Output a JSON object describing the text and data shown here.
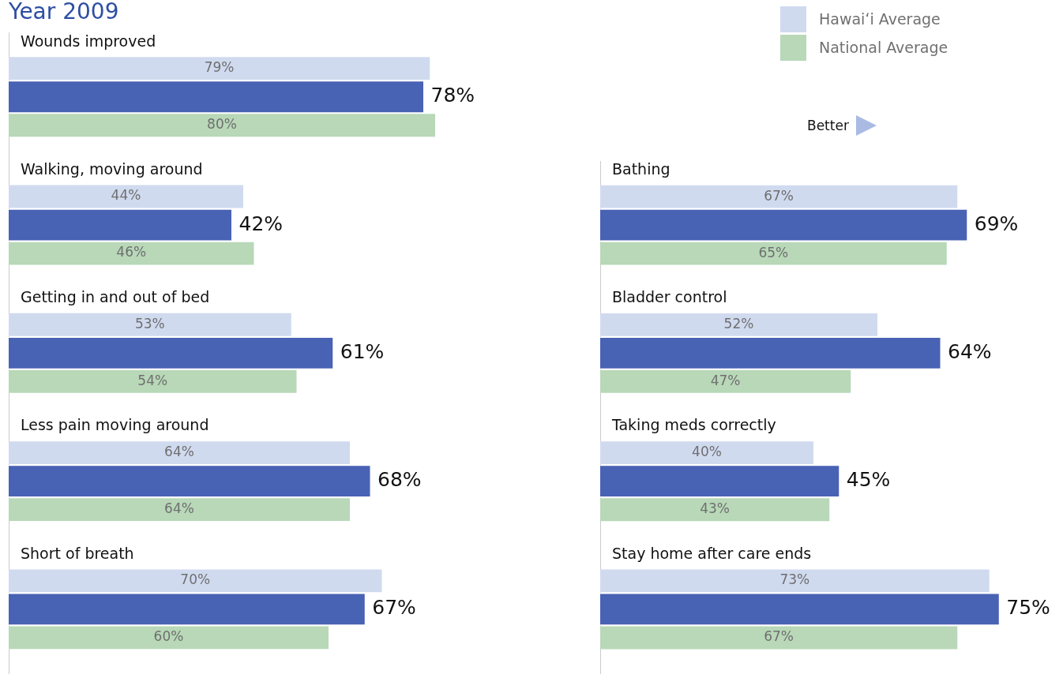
{
  "chart_data": [
    {
      "type": "bar",
      "orientation": "horizontal",
      "title": "Year 2009",
      "categories": [
        "Wounds improved",
        "Walking, moving around",
        "Getting in and out of bed",
        "Less pain moving around",
        "Short of breath"
      ],
      "tick_labels": "y",
      "legend": "top right",
      "series": [
        {
          "name": "Hawaiʻi Average",
          "color": "#d0daef",
          "values": [
            79,
            44,
            53,
            64,
            70
          ],
          "value_labels": [
            "79%",
            "44%",
            "53%",
            "64%",
            "70%"
          ]
        },
        {
          "color": "#4862b4",
          "values": [
            78,
            42,
            61,
            68,
            67
          ],
          "value_labels": [
            "78%",
            "42%",
            "61%",
            "68%",
            "67%"
          ]
        },
        {
          "name": "National Average",
          "color": "#b8d8b8",
          "values": [
            80,
            46,
            54,
            64,
            60
          ],
          "value_labels": [
            "80%",
            "46%",
            "54%",
            "64%",
            "60%"
          ]
        }
      ]
    },
    {
      "type": "bar",
      "orientation": "horizontal",
      "categories": [
        "Bathing",
        "Bladder control",
        "Taking meds correctly",
        "Stay home after care ends"
      ],
      "tick_labels": "y",
      "annotations": [
        "Better"
      ],
      "series": [
        {
          "color": "#d0daef",
          "values": [
            67,
            52,
            40,
            73
          ],
          "value_labels": [
            "67%",
            "52%",
            "40%",
            "73%"
          ]
        },
        {
          "color": "#4862b4",
          "values": [
            69,
            64,
            45,
            75
          ],
          "value_labels": [
            "69%",
            "64%",
            "45%",
            "75%"
          ]
        },
        {
          "color": "#b8d8b8",
          "values": [
            65,
            47,
            43,
            67
          ],
          "value_labels": [
            "65%",
            "47%",
            "43%",
            "67%"
          ]
        }
      ]
    }
  ]
}
